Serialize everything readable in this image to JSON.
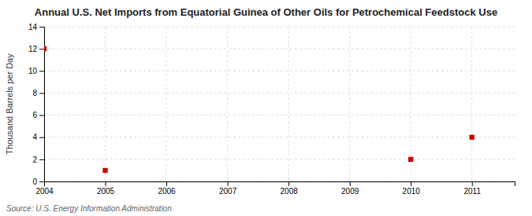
{
  "chart_data": {
    "type": "scatter",
    "title": "Annual U.S. Net Imports from Equatorial Guinea of Other Oils for Petrochemical Feedstock Use",
    "y_label": "Thousand Barrels per Day",
    "source": "Source: U.S. Energy Information Administration",
    "x": [
      2004,
      2005,
      2010,
      2011
    ],
    "values": [
      12,
      1,
      2,
      4
    ],
    "color": "#cc0000",
    "marker": "square",
    "xlim": [
      2004,
      2011.7
    ],
    "ylim": [
      0,
      14
    ],
    "xticks": [
      2004,
      2005,
      2006,
      2007,
      2008,
      2009,
      2010,
      2011
    ],
    "yticks": [
      0,
      2,
      4,
      6,
      8,
      10,
      12,
      14
    ],
    "grid": true
  }
}
